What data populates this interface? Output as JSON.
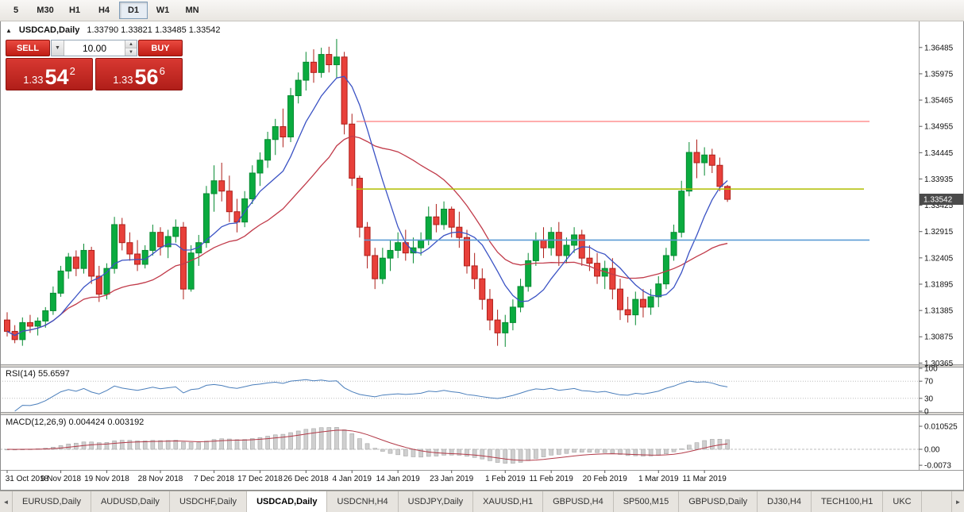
{
  "toolbar": {
    "timeframes": [
      "5",
      "M30",
      "H1",
      "H4",
      "D1",
      "W1",
      "MN"
    ],
    "active": "D1"
  },
  "window": {
    "marker": "▲",
    "symbol": "USDCAD,Daily",
    "ohlc": "1.33790 1.33821 1.33485 1.33542"
  },
  "trade": {
    "sell_label": "SELL",
    "buy_label": "BUY",
    "volume": "10.00",
    "caret": "▼",
    "spin_up": "▲",
    "spin_down": "▼",
    "bid": {
      "prefix": "1.33",
      "big": "54",
      "sup": "2"
    },
    "ask": {
      "prefix": "1.33",
      "big": "56",
      "sup": "6"
    }
  },
  "price_axis": {
    "labels": [
      "1.36485",
      "1.35975",
      "1.35465",
      "1.34955",
      "1.34445",
      "1.33935",
      "1.33425",
      "1.32915",
      "1.32405",
      "1.31895",
      "1.31385",
      "1.30875",
      "1.30365"
    ],
    "current": "1.33542"
  },
  "rsi": {
    "label": "RSI(14)",
    "value": "55.6597",
    "levels": [
      "100",
      "70",
      "30",
      "0"
    ]
  },
  "macd": {
    "label": "MACD(12,26,9)",
    "values": "0.004424 0.003192",
    "axis": [
      "0.010525",
      "0.00",
      "-0.0073"
    ]
  },
  "tabs": {
    "items": [
      "EURUSD,Daily",
      "AUDUSD,Daily",
      "USDCHF,Daily",
      "USDCAD,Daily",
      "USDCNH,H4",
      "USDJPY,Daily",
      "XAUUSD,H1",
      "GBPUSD,H4",
      "SP500,M15",
      "GBPUSD,Daily",
      "DJ30,H4",
      "TECH100,H1",
      "UKC"
    ],
    "active_index": 3,
    "left_arrow": "◄",
    "right_arrow": "►"
  },
  "chart_data": {
    "type": "candlestick",
    "symbol": "USDCAD",
    "timeframe": "Daily",
    "title": "USDCAD,Daily",
    "y_range": [
      1.3034,
      1.3699
    ],
    "y_axis_ticks": [
      1.36485,
      1.35975,
      1.35465,
      1.34955,
      1.34445,
      1.33935,
      1.33425,
      1.32915,
      1.32405,
      1.31895,
      1.31385,
      1.30875,
      1.30365
    ],
    "x_tick_labels": [
      "31 Oct 2018",
      "9 Nov 2018",
      "19 Nov 2018",
      "28 Nov 2018",
      "7 Dec 2018",
      "17 Dec 2018",
      "26 Dec 2018",
      "4 Jan 2019",
      "14 Jan 2019",
      "23 Jan 2019",
      "1 Feb 2019",
      "11 Feb 2019",
      "20 Feb 2019",
      "1 Mar 2019",
      "11 Mar 2019"
    ],
    "x_tick_indices": [
      0,
      7,
      13,
      20,
      27,
      33,
      39,
      45,
      51,
      58,
      65,
      71,
      78,
      85,
      91
    ],
    "current_price": 1.33542,
    "colors": {
      "up": "#0aab3f",
      "up_border": "#068a31",
      "down": "#e8403a",
      "down_border": "#ae1f1a"
    },
    "ma_fast": {
      "type": "sma",
      "period": 8,
      "color": "#3a52c4"
    },
    "ma_slow": {
      "type": "sma",
      "period": 20,
      "color": "#c13b4a"
    },
    "rsi_period": 14,
    "macd_periods": [
      12,
      26,
      9
    ],
    "hlines": [
      {
        "price": 1.3505,
        "color": "#ff5b5b",
        "width": 1,
        "start_index": 46,
        "end_x": 1095
      },
      {
        "price": 1.3374,
        "color": "#b0bd00",
        "width": 1.6,
        "start_index": 46,
        "end_x": 1088
      },
      {
        "price": 1.3275,
        "color": "#5b9bd5",
        "width": 1.6,
        "start_index": 47,
        "end_x": 1095
      }
    ],
    "candles": [
      [
        1.312,
        1.3135,
        1.3088,
        1.3098
      ],
      [
        1.3098,
        1.311,
        1.3075,
        1.3082
      ],
      [
        1.3082,
        1.3125,
        1.307,
        1.3115
      ],
      [
        1.3115,
        1.313,
        1.3095,
        1.3108
      ],
      [
        1.3108,
        1.3125,
        1.309,
        1.3118
      ],
      [
        1.3118,
        1.3145,
        1.3105,
        1.3138
      ],
      [
        1.3138,
        1.3185,
        1.313,
        1.3172
      ],
      [
        1.3172,
        1.3225,
        1.3165,
        1.3215
      ],
      [
        1.3215,
        1.325,
        1.32,
        1.3242
      ],
      [
        1.3242,
        1.3255,
        1.3205,
        1.322
      ],
      [
        1.322,
        1.3268,
        1.321,
        1.3255
      ],
      [
        1.3255,
        1.3262,
        1.319,
        1.3205
      ],
      [
        1.3205,
        1.3225,
        1.3155,
        1.317
      ],
      [
        1.317,
        1.323,
        1.316,
        1.322
      ],
      [
        1.322,
        1.332,
        1.321,
        1.3305
      ],
      [
        1.3305,
        1.3318,
        1.3255,
        1.327
      ],
      [
        1.327,
        1.329,
        1.3235,
        1.3248
      ],
      [
        1.3248,
        1.3275,
        1.3215,
        1.3228
      ],
      [
        1.3228,
        1.3265,
        1.322,
        1.3255
      ],
      [
        1.3255,
        1.3305,
        1.3245,
        1.329
      ],
      [
        1.329,
        1.33,
        1.3245,
        1.3262
      ],
      [
        1.3262,
        1.3295,
        1.324,
        1.3282
      ],
      [
        1.3282,
        1.3315,
        1.327,
        1.33
      ],
      [
        1.33,
        1.331,
        1.316,
        1.318
      ],
      [
        1.318,
        1.3265,
        1.3175,
        1.325
      ],
      [
        1.325,
        1.3285,
        1.3225,
        1.327
      ],
      [
        1.327,
        1.338,
        1.326,
        1.3365
      ],
      [
        1.3365,
        1.342,
        1.333,
        1.339
      ],
      [
        1.339,
        1.3425,
        1.335,
        1.337
      ],
      [
        1.337,
        1.34,
        1.331,
        1.333
      ],
      [
        1.333,
        1.3355,
        1.329,
        1.331
      ],
      [
        1.331,
        1.337,
        1.33,
        1.3355
      ],
      [
        1.3355,
        1.342,
        1.3345,
        1.3405
      ],
      [
        1.3405,
        1.3445,
        1.338,
        1.343
      ],
      [
        1.343,
        1.3485,
        1.3415,
        1.347
      ],
      [
        1.347,
        1.351,
        1.344,
        1.3495
      ],
      [
        1.3495,
        1.353,
        1.3455,
        1.3475
      ],
      [
        1.3475,
        1.357,
        1.3465,
        1.3555
      ],
      [
        1.3555,
        1.36,
        1.354,
        1.3585
      ],
      [
        1.3585,
        1.364,
        1.3565,
        1.362
      ],
      [
        1.362,
        1.3645,
        1.358,
        1.36
      ],
      [
        1.36,
        1.3648,
        1.359,
        1.3635
      ],
      [
        1.3635,
        1.365,
        1.36,
        1.3615
      ],
      [
        1.3615,
        1.3665,
        1.359,
        1.363
      ],
      [
        1.363,
        1.364,
        1.348,
        1.35
      ],
      [
        1.35,
        1.352,
        1.338,
        1.3395
      ],
      [
        1.3395,
        1.34,
        1.328,
        1.33
      ],
      [
        1.33,
        1.331,
        1.322,
        1.3245
      ],
      [
        1.3245,
        1.326,
        1.318,
        1.32
      ],
      [
        1.32,
        1.326,
        1.319,
        1.324
      ],
      [
        1.324,
        1.3275,
        1.3215,
        1.3255
      ],
      [
        1.3255,
        1.329,
        1.324,
        1.327
      ],
      [
        1.327,
        1.3295,
        1.3235,
        1.325
      ],
      [
        1.325,
        1.328,
        1.323,
        1.326
      ],
      [
        1.326,
        1.329,
        1.3245,
        1.3275
      ],
      [
        1.3275,
        1.334,
        1.3265,
        1.332
      ],
      [
        1.332,
        1.3345,
        1.329,
        1.3305
      ],
      [
        1.3305,
        1.335,
        1.3295,
        1.3335
      ],
      [
        1.3335,
        1.334,
        1.328,
        1.33
      ],
      [
        1.33,
        1.333,
        1.326,
        1.328
      ],
      [
        1.328,
        1.3295,
        1.321,
        1.3225
      ],
      [
        1.3225,
        1.325,
        1.318,
        1.32
      ],
      [
        1.32,
        1.322,
        1.314,
        1.316
      ],
      [
        1.316,
        1.318,
        1.31,
        1.312
      ],
      [
        1.312,
        1.314,
        1.307,
        1.3095
      ],
      [
        1.3095,
        1.313,
        1.3068,
        1.3115
      ],
      [
        1.3115,
        1.316,
        1.31,
        1.3145
      ],
      [
        1.3145,
        1.32,
        1.3135,
        1.3185
      ],
      [
        1.3185,
        1.325,
        1.3175,
        1.3235
      ],
      [
        1.3235,
        1.329,
        1.3225,
        1.3275
      ],
      [
        1.3275,
        1.33,
        1.324,
        1.326
      ],
      [
        1.326,
        1.33,
        1.3245,
        1.329
      ],
      [
        1.329,
        1.331,
        1.3225,
        1.3245
      ],
      [
        1.3245,
        1.328,
        1.323,
        1.3265
      ],
      [
        1.3265,
        1.33,
        1.325,
        1.3285
      ],
      [
        1.3285,
        1.3295,
        1.3225,
        1.324
      ],
      [
        1.324,
        1.3265,
        1.3215,
        1.323
      ],
      [
        1.323,
        1.325,
        1.319,
        1.3205
      ],
      [
        1.3205,
        1.3235,
        1.318,
        1.322
      ],
      [
        1.322,
        1.324,
        1.316,
        1.318
      ],
      [
        1.318,
        1.32,
        1.312,
        1.314
      ],
      [
        1.314,
        1.3165,
        1.3115,
        1.313
      ],
      [
        1.313,
        1.3175,
        1.311,
        1.316
      ],
      [
        1.316,
        1.318,
        1.3125,
        1.3145
      ],
      [
        1.3145,
        1.318,
        1.313,
        1.3165
      ],
      [
        1.3165,
        1.3205,
        1.3145,
        1.319
      ],
      [
        1.319,
        1.326,
        1.318,
        1.3245
      ],
      [
        1.3245,
        1.3305,
        1.3235,
        1.329
      ],
      [
        1.329,
        1.339,
        1.328,
        1.337
      ],
      [
        1.337,
        1.3465,
        1.336,
        1.3445
      ],
      [
        1.3445,
        1.347,
        1.3395,
        1.3425
      ],
      [
        1.3425,
        1.3455,
        1.34,
        1.344
      ],
      [
        1.344,
        1.3452,
        1.3405,
        1.342
      ],
      [
        1.342,
        1.3435,
        1.337,
        1.3379
      ],
      [
        1.3379,
        1.3382,
        1.3349,
        1.3354
      ]
    ],
    "subwindows": [
      {
        "name": "RSI",
        "label": "RSI(14)",
        "value": 55.6597,
        "levels": [
          100,
          70,
          30,
          0
        ]
      },
      {
        "name": "MACD",
        "label": "MACD(12,26,9)",
        "values": [
          0.004424,
          0.003192
        ],
        "axis": [
          0.010525,
          0.0,
          -0.0073
        ]
      }
    ]
  }
}
